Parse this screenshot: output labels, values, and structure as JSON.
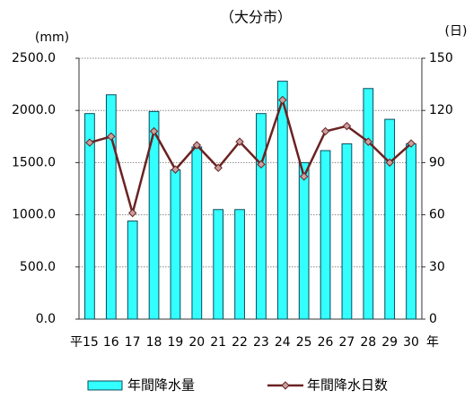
{
  "chart_data": {
    "type": "bar-line",
    "title": "（大分市）",
    "ylabel": "(mm)",
    "y2label": "(日)",
    "x_unit": "年",
    "categories": [
      "平15",
      "16",
      "17",
      "18",
      "19",
      "20",
      "21",
      "22",
      "23",
      "24",
      "25",
      "26",
      "27",
      "28",
      "29",
      "30"
    ],
    "series": [
      {
        "name": "年間降水量",
        "type": "bar",
        "color": "#33ffff",
        "values": [
          1970,
          2150,
          940,
          1990,
          1430,
          1650,
          1050,
          1050,
          1970,
          2280,
          1500,
          1615,
          1680,
          2210,
          1915,
          1680
        ]
      },
      {
        "name": "年間降水日数",
        "type": "line",
        "axis": "y2",
        "color": "#6b2222",
        "values": [
          101.5,
          105,
          61,
          108,
          86,
          100,
          87,
          102,
          89,
          126,
          82,
          108,
          111,
          102,
          90,
          101
        ]
      }
    ],
    "ylim": [
      0,
      2500
    ],
    "yticks": [
      {
        "value": 0,
        "label": "0.0"
      },
      {
        "value": 500,
        "label": "500.0"
      },
      {
        "value": 1000,
        "label": "1000.0"
      },
      {
        "value": 1500,
        "label": "1500.0"
      },
      {
        "value": 2000,
        "label": "2000.0"
      },
      {
        "value": 2500,
        "label": "2500.0"
      }
    ],
    "y2lim": [
      0,
      150
    ],
    "y2ticks": [
      0,
      30,
      60,
      90,
      120,
      150
    ],
    "grid": true
  }
}
